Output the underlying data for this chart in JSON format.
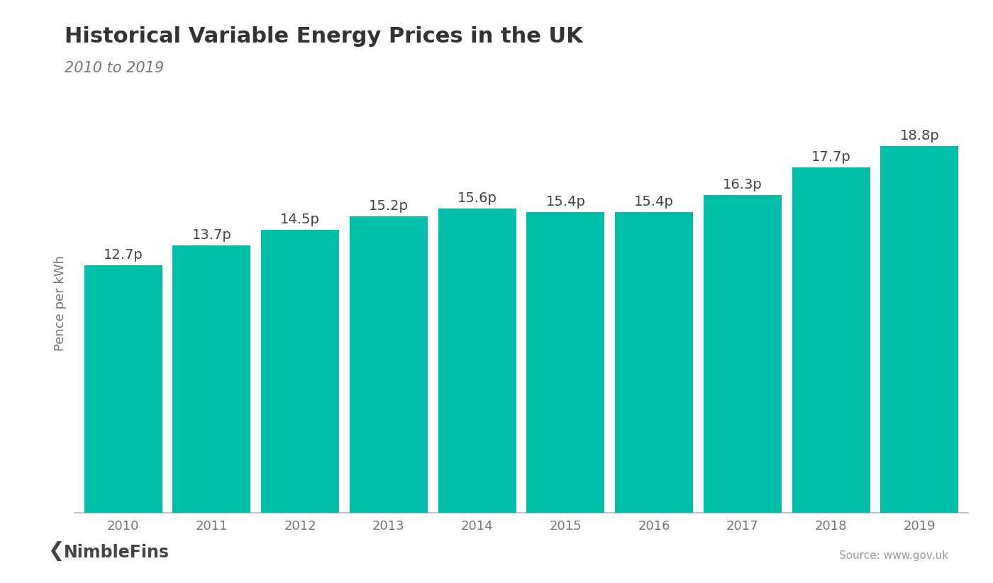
{
  "title": "Historical Variable Energy Prices in the UK",
  "subtitle": "2010 to 2019",
  "ylabel": "Pence per kWh",
  "source": "Source: www.gov.uk",
  "logo_text": "NimbleFins",
  "years": [
    "2010",
    "2011",
    "2012",
    "2013",
    "2014",
    "2015",
    "2016",
    "2017",
    "2018",
    "2019"
  ],
  "values": [
    12.7,
    13.7,
    14.5,
    15.2,
    15.6,
    15.4,
    15.4,
    16.3,
    17.7,
    18.8
  ],
  "labels": [
    "12.7p",
    "13.7p",
    "14.5p",
    "15.2p",
    "15.6p",
    "15.4p",
    "15.4p",
    "16.3p",
    "17.7p",
    "18.8p"
  ],
  "bar_color": "#00BFA8",
  "background_color": "#ffffff",
  "title_fontsize": 22,
  "subtitle_fontsize": 15,
  "label_fontsize": 14,
  "tick_fontsize": 13,
  "ylabel_fontsize": 13,
  "title_color": "#333333",
  "subtitle_color": "#777777",
  "label_color": "#444444",
  "tick_color": "#777777",
  "axis_line_color": "#bbbbbb",
  "bar_width": 0.88,
  "ylim": [
    0,
    21.5
  ]
}
